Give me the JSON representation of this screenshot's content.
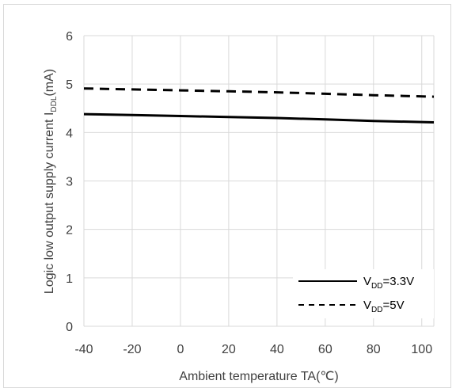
{
  "chart_data": {
    "type": "line",
    "xlabel": "Ambient temperature TA(℃)",
    "ylabel": {
      "main": "Logic low output supply current I",
      "sub": "DDL",
      "unit": "(mA)"
    },
    "xlim": [
      -40,
      105
    ],
    "ylim": [
      0,
      6
    ],
    "x_ticks": [
      "-40",
      "-20",
      "0",
      "20",
      "40",
      "60",
      "80",
      "100"
    ],
    "y_ticks": [
      "0",
      "1",
      "2",
      "3",
      "4",
      "5",
      "6"
    ],
    "grid": true,
    "legend_position": "bottom-right",
    "series": [
      {
        "name": "VDD=3.3V",
        "legend": {
          "main": "V",
          "sub": "DD",
          "rest": "=3.3V"
        },
        "style": "solid",
        "color": "#000000",
        "x": [
          -40,
          -20,
          0,
          20,
          40,
          60,
          80,
          105
        ],
        "y": [
          4.38,
          4.36,
          4.34,
          4.32,
          4.3,
          4.27,
          4.24,
          4.21
        ]
      },
      {
        "name": "VDD=5V",
        "legend": {
          "main": "V",
          "sub": "DD",
          "rest": "=5V"
        },
        "style": "dashed",
        "color": "#000000",
        "x": [
          -40,
          -20,
          0,
          20,
          40,
          60,
          80,
          105
        ],
        "y": [
          4.91,
          4.89,
          4.87,
          4.85,
          4.83,
          4.8,
          4.77,
          4.74
        ]
      }
    ]
  }
}
